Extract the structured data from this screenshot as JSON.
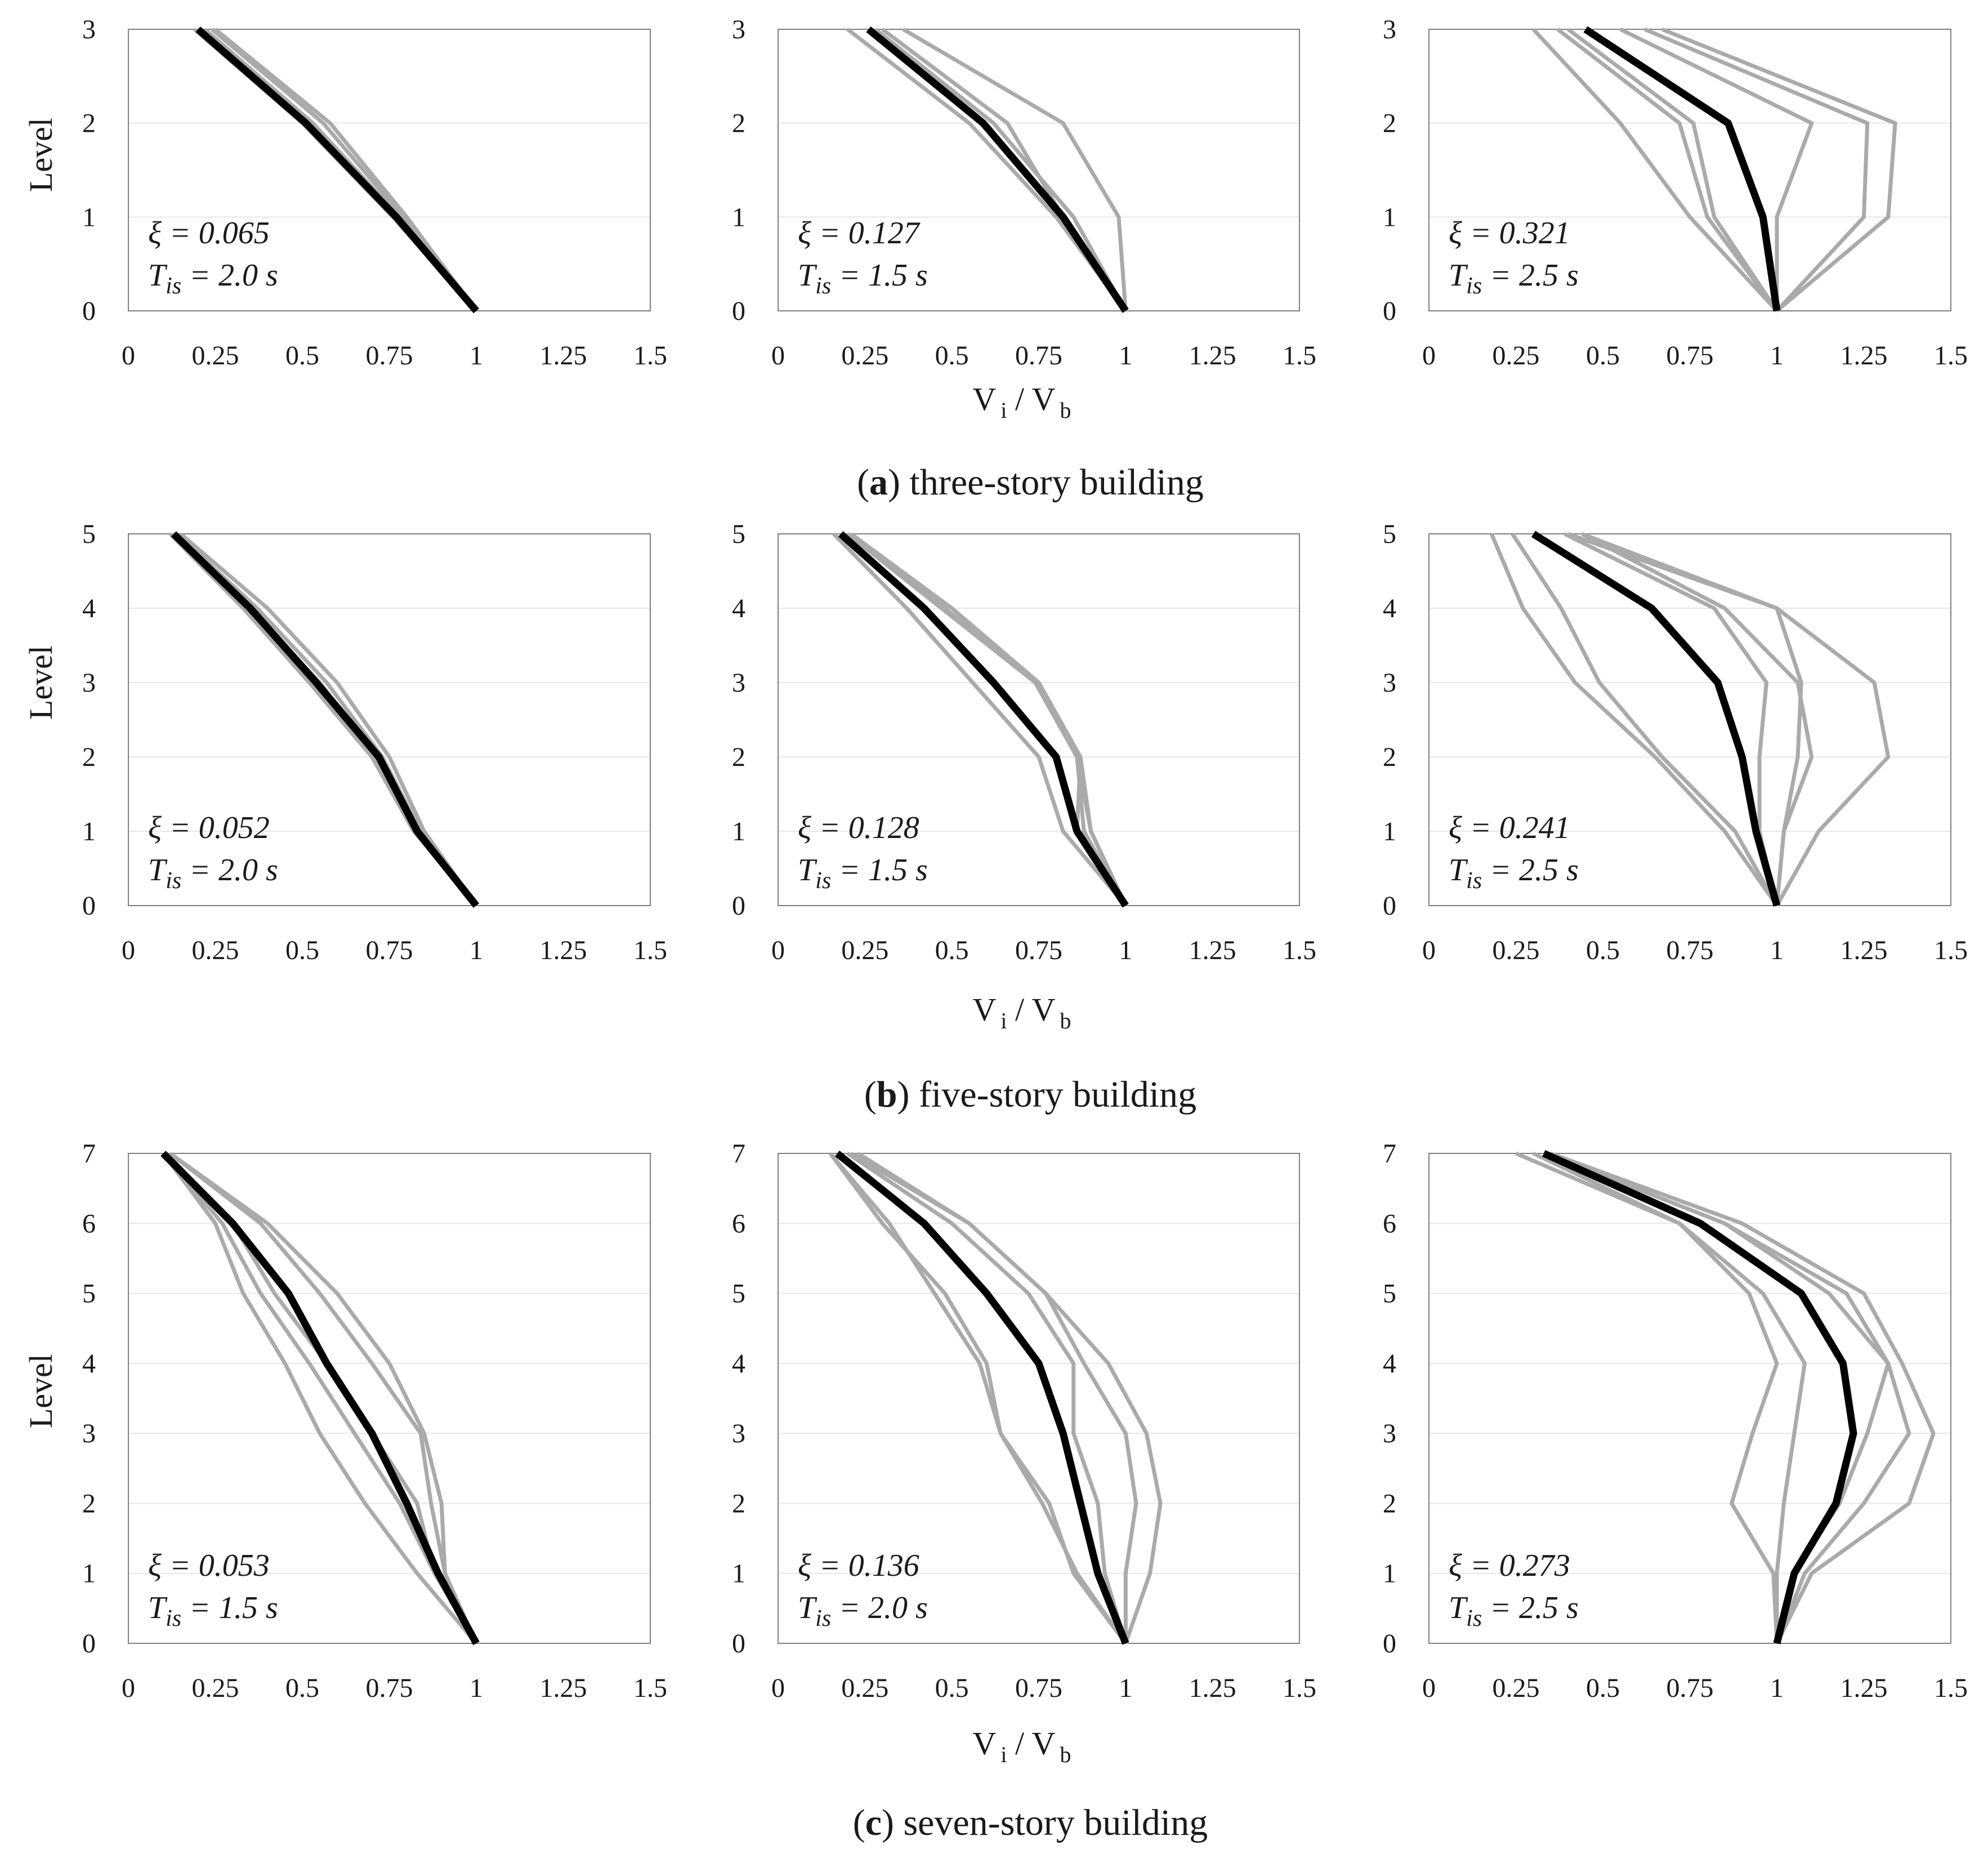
{
  "captions": [
    {
      "label": "a",
      "text": " three-story building"
    },
    {
      "label": "b",
      "text": " five-story building"
    },
    {
      "label": "c",
      "text": " seven-story building"
    }
  ],
  "axis_text": {
    "ylabel": "Level",
    "xlabel_main": "V",
    "xlabel_sub_i": "i",
    "xlabel_sep": " / ",
    "xlabel_main2": "V",
    "xlabel_sub_b": "b"
  },
  "chart_data": [
    {
      "type": "line",
      "row": "a",
      "col": 1,
      "xlim": [
        0,
        1.5
      ],
      "ylim": [
        0,
        3
      ],
      "xticks": [
        "0",
        "0.25",
        "0.5",
        "0.75",
        "1",
        "1.25",
        "1.5"
      ],
      "yticks": [
        "0",
        "1",
        "2",
        "3"
      ],
      "xi": "ξ = 0.065",
      "T_sym": "T",
      "T_sub": "is",
      "T_val": " = 2.0 s",
      "levels": [
        0,
        1,
        2,
        3
      ],
      "gray": [
        [
          1,
          0.76,
          0.5,
          0.19
        ],
        [
          1,
          0.78,
          0.53,
          0.22
        ],
        [
          1,
          0.79,
          0.56,
          0.24
        ],
        [
          1,
          0.8,
          0.58,
          0.25
        ]
      ],
      "mean": [
        1,
        0.77,
        0.51,
        0.2
      ]
    },
    {
      "type": "line",
      "row": "a",
      "col": 2,
      "xlim": [
        0,
        1.5
      ],
      "ylim": [
        0,
        3
      ],
      "xticks": [
        "0",
        "0.25",
        "0.5",
        "0.75",
        "1",
        "1.25",
        "1.5"
      ],
      "yticks": [
        "0",
        "1",
        "2",
        "3"
      ],
      "xi": "ξ = 0.127",
      "T_sym": "T",
      "T_sub": "is",
      "T_val": " = 1.5 s",
      "levels": [
        0,
        1,
        2,
        3
      ],
      "gray": [
        [
          1,
          0.8,
          0.55,
          0.2
        ],
        [
          1,
          0.85,
          0.62,
          0.28
        ],
        [
          1,
          0.82,
          0.66,
          0.3
        ],
        [
          1,
          0.98,
          0.82,
          0.36
        ]
      ],
      "mean": [
        1,
        0.82,
        0.59,
        0.26
      ]
    },
    {
      "type": "line",
      "row": "a",
      "col": 3,
      "xlim": [
        0,
        1.5
      ],
      "ylim": [
        0,
        3
      ],
      "xticks": [
        "0",
        "0.25",
        "0.5",
        "0.75",
        "1",
        "1.25",
        "1.5"
      ],
      "yticks": [
        "0",
        "1",
        "2",
        "3"
      ],
      "xi": "ξ = 0.321",
      "T_sym": "T",
      "T_sub": "is",
      "T_val": " = 2.5 s",
      "levels": [
        0,
        1,
        2,
        3
      ],
      "gray": [
        [
          1,
          0.75,
          0.55,
          0.3
        ],
        [
          1,
          0.8,
          0.72,
          0.37
        ],
        [
          1,
          0.82,
          0.76,
          0.4
        ],
        [
          1,
          1,
          1.1,
          0.55
        ],
        [
          1,
          1.25,
          1.26,
          0.62
        ],
        [
          1,
          1.32,
          1.34,
          0.67
        ]
      ],
      "mean": [
        1,
        0.96,
        0.86,
        0.45
      ]
    },
    {
      "type": "line",
      "row": "b",
      "col": 1,
      "xlim": [
        0,
        1.5
      ],
      "ylim": [
        0,
        5
      ],
      "xticks": [
        "0",
        "0.25",
        "0.5",
        "0.75",
        "1",
        "1.25",
        "1.5"
      ],
      "yticks": [
        "0",
        "1",
        "2",
        "3",
        "4",
        "5"
      ],
      "xi": "ξ = 0.052",
      "T_sym": "T",
      "T_sub": "is",
      "T_val": " = 2.0 s",
      "levels": [
        0,
        1,
        2,
        3,
        4,
        5
      ],
      "gray": [
        [
          1,
          0.82,
          0.7,
          0.52,
          0.33,
          0.12
        ],
        [
          1,
          0.84,
          0.73,
          0.57,
          0.37,
          0.14
        ],
        [
          1,
          0.85,
          0.75,
          0.6,
          0.4,
          0.15
        ],
        [
          1,
          0.83,
          0.71,
          0.55,
          0.35,
          0.13
        ]
      ],
      "mean": [
        1,
        0.83,
        0.72,
        0.54,
        0.35,
        0.13
      ]
    },
    {
      "type": "line",
      "row": "b",
      "col": 2,
      "xlim": [
        0,
        1.5
      ],
      "ylim": [
        0,
        5
      ],
      "xticks": [
        "0",
        "0.25",
        "0.5",
        "0.75",
        "1",
        "1.25",
        "1.5"
      ],
      "yticks": [
        "0",
        "1",
        "2",
        "3",
        "4",
        "5"
      ],
      "xi": "ξ = 0.128",
      "T_sym": "T",
      "T_sub": "is",
      "T_val": " = 1.5 s",
      "levels": [
        0,
        1,
        2,
        3,
        4,
        5
      ],
      "gray": [
        [
          1,
          0.82,
          0.75,
          0.56,
          0.37,
          0.16
        ],
        [
          1,
          0.88,
          0.86,
          0.74,
          0.47,
          0.2
        ],
        [
          1,
          0.86,
          0.87,
          0.75,
          0.5,
          0.21
        ],
        [
          1,
          0.9,
          0.86,
          0.74,
          0.5,
          0.2
        ],
        [
          1,
          0.9,
          0.86,
          0.75,
          0.5,
          0.2
        ],
        [
          1,
          0.9,
          0.87,
          0.74,
          0.48,
          0.21
        ]
      ],
      "mean": [
        1,
        0.86,
        0.8,
        0.62,
        0.42,
        0.18
      ]
    },
    {
      "type": "line",
      "row": "b",
      "col": 3,
      "xlim": [
        0,
        1.5
      ],
      "ylim": [
        0,
        5
      ],
      "xticks": [
        "0",
        "0.25",
        "0.5",
        "0.75",
        "1",
        "1.25",
        "1.5"
      ],
      "yticks": [
        "0",
        "1",
        "2",
        "3",
        "4",
        "5"
      ],
      "xi": "ξ = 0.241",
      "T_sym": "T",
      "T_sub": "is",
      "T_val": " = 2.5 s",
      "levels": [
        0,
        1,
        2,
        3,
        4,
        5
      ],
      "gray": [
        [
          1,
          0.85,
          0.65,
          0.42,
          0.27,
          0.18
        ],
        [
          1,
          0.88,
          0.67,
          0.49,
          0.38,
          0.24
        ],
        [
          1,
          0.95,
          0.95,
          0.97,
          0.82,
          0.39
        ],
        [
          1,
          1.02,
          1.1,
          1.06,
          0.85,
          0.44
        ],
        [
          1,
          1.02,
          1.06,
          1.07,
          1.0,
          0.44
        ],
        [
          1,
          1.12,
          1.32,
          1.28,
          1.0,
          0.4
        ]
      ],
      "mean": [
        1,
        0.94,
        0.9,
        0.83,
        0.64,
        0.3
      ]
    },
    {
      "type": "line",
      "row": "c",
      "col": 1,
      "xlim": [
        0,
        1.5
      ],
      "ylim": [
        0,
        7
      ],
      "xticks": [
        "0",
        "0.25",
        "0.5",
        "0.75",
        "1",
        "1.25",
        "1.5"
      ],
      "yticks": [
        "0",
        "1",
        "2",
        "3",
        "4",
        "5",
        "6",
        "7"
      ],
      "xi": "ξ = 0.053",
      "T_sym": "T",
      "T_sub": "is",
      "T_val": " = 1.5 s",
      "levels": [
        0,
        1,
        2,
        3,
        4,
        5,
        6,
        7
      ],
      "gray": [
        [
          1,
          0.83,
          0.68,
          0.55,
          0.45,
          0.33,
          0.25,
          0.1
        ],
        [
          1,
          0.88,
          0.78,
          0.65,
          0.52,
          0.38,
          0.27,
          0.1
        ],
        [
          1,
          0.91,
          0.87,
          0.84,
          0.7,
          0.55,
          0.38,
          0.12
        ],
        [
          1,
          0.91,
          0.9,
          0.85,
          0.75,
          0.6,
          0.4,
          0.12
        ],
        [
          1,
          0.88,
          0.83,
          0.7,
          0.57,
          0.42,
          0.3,
          0.11
        ]
      ],
      "mean": [
        1,
        0.89,
        0.8,
        0.7,
        0.57,
        0.46,
        0.3,
        0.1
      ]
    },
    {
      "type": "line",
      "row": "c",
      "col": 2,
      "xlim": [
        0,
        1.5
      ],
      "ylim": [
        0,
        7
      ],
      "xticks": [
        "0",
        "0.25",
        "0.5",
        "0.75",
        "1",
        "1.25",
        "1.5"
      ],
      "yticks": [
        "0",
        "1",
        "2",
        "3",
        "4",
        "5",
        "6",
        "7"
      ],
      "xi": "ξ = 0.136",
      "T_sym": "T",
      "T_sub": "is",
      "T_val": " = 2.0 s",
      "levels": [
        0,
        1,
        2,
        3,
        4,
        5,
        6,
        7
      ],
      "gray": [
        [
          1,
          0.86,
          0.76,
          0.64,
          0.58,
          0.45,
          0.32,
          0.15
        ],
        [
          1,
          0.85,
          0.78,
          0.64,
          0.6,
          0.48,
          0.3,
          0.15
        ],
        [
          1,
          0.94,
          0.92,
          0.85,
          0.85,
          0.72,
          0.5,
          0.2
        ],
        [
          1,
          1.07,
          1.1,
          1.06,
          0.95,
          0.77,
          0.55,
          0.23
        ],
        [
          1,
          1.0,
          1.03,
          1.0,
          0.88,
          0.77,
          0.55,
          0.21
        ]
      ],
      "mean": [
        1,
        0.92,
        0.87,
        0.82,
        0.75,
        0.6,
        0.42,
        0.17
      ]
    },
    {
      "type": "line",
      "row": "c",
      "col": 3,
      "xlim": [
        0,
        1.5
      ],
      "ylim": [
        0,
        7
      ],
      "xticks": [
        "0",
        "0.25",
        "0.5",
        "0.75",
        "1",
        "1.25",
        "1.5"
      ],
      "yticks": [
        "0",
        "1",
        "2",
        "3",
        "4",
        "5",
        "6",
        "7"
      ],
      "xi": "ξ = 0.273",
      "T_sym": "T",
      "T_sub": "is",
      "T_val": " = 2.5 s",
      "levels": [
        0,
        1,
        2,
        3,
        4,
        5,
        6,
        7
      ],
      "gray": [
        [
          1,
          0.99,
          0.87,
          0.93,
          1.0,
          0.92,
          0.72,
          0.25
        ],
        [
          1,
          1.0,
          1.02,
          1.05,
          1.08,
          0.96,
          0.72,
          0.3
        ],
        [
          1,
          1.05,
          1.18,
          1.26,
          1.32,
          1.2,
          0.85,
          0.34
        ],
        [
          1,
          1.1,
          1.38,
          1.45,
          1.36,
          1.25,
          0.9,
          0.35
        ],
        [
          1,
          1.08,
          1.25,
          1.38,
          1.32,
          1.15,
          0.85,
          0.34
        ]
      ],
      "mean": [
        1,
        1.05,
        1.17,
        1.22,
        1.19,
        1.07,
        0.78,
        0.33
      ]
    }
  ]
}
